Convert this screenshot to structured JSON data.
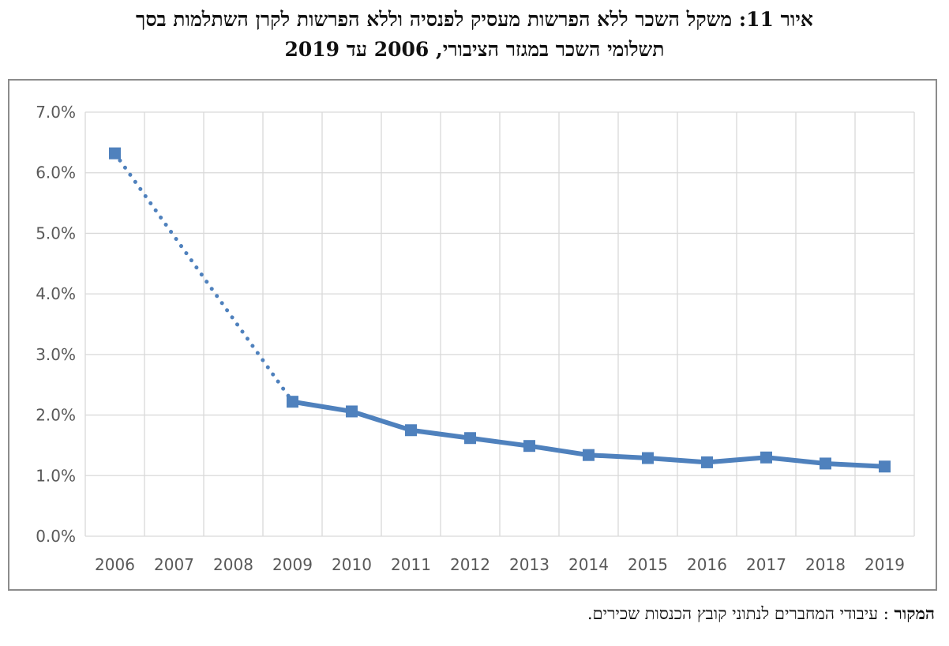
{
  "chart_data": {
    "type": "line",
    "title_line1": "איור 11: משקל השכר ללא הפרשות מעסיק לפנסיה וללא הפרשות לקרן השתלמות בסך",
    "title_line2": "תשלומי השכר במגזר הציבורי, 2006 עד 2019",
    "xlabel": "",
    "ylabel": "",
    "categories": [
      "2006",
      "2007",
      "2008",
      "2009",
      "2010",
      "2011",
      "2012",
      "2013",
      "2014",
      "2015",
      "2016",
      "2017",
      "2018",
      "2019"
    ],
    "y_ticks": [
      "0.0%",
      "1.0%",
      "2.0%",
      "3.0%",
      "4.0%",
      "5.0%",
      "6.0%",
      "7.0%"
    ],
    "ylim": [
      0,
      7
    ],
    "y_unit": "%",
    "grid": true,
    "legend": "none",
    "series": [
      {
        "values": [
          6.32,
          null,
          null,
          2.22,
          2.06,
          1.75,
          1.62,
          1.49,
          1.34,
          1.29,
          1.22,
          1.3,
          1.2,
          1.15
        ],
        "gap_style": "dotted",
        "color": "#4f81bd",
        "marker": "square"
      }
    ]
  },
  "source": {
    "label": "המקור",
    "separator": ":",
    "text": "עיבודי המחברים לנתוני קובץ הכנסות שכירים."
  }
}
